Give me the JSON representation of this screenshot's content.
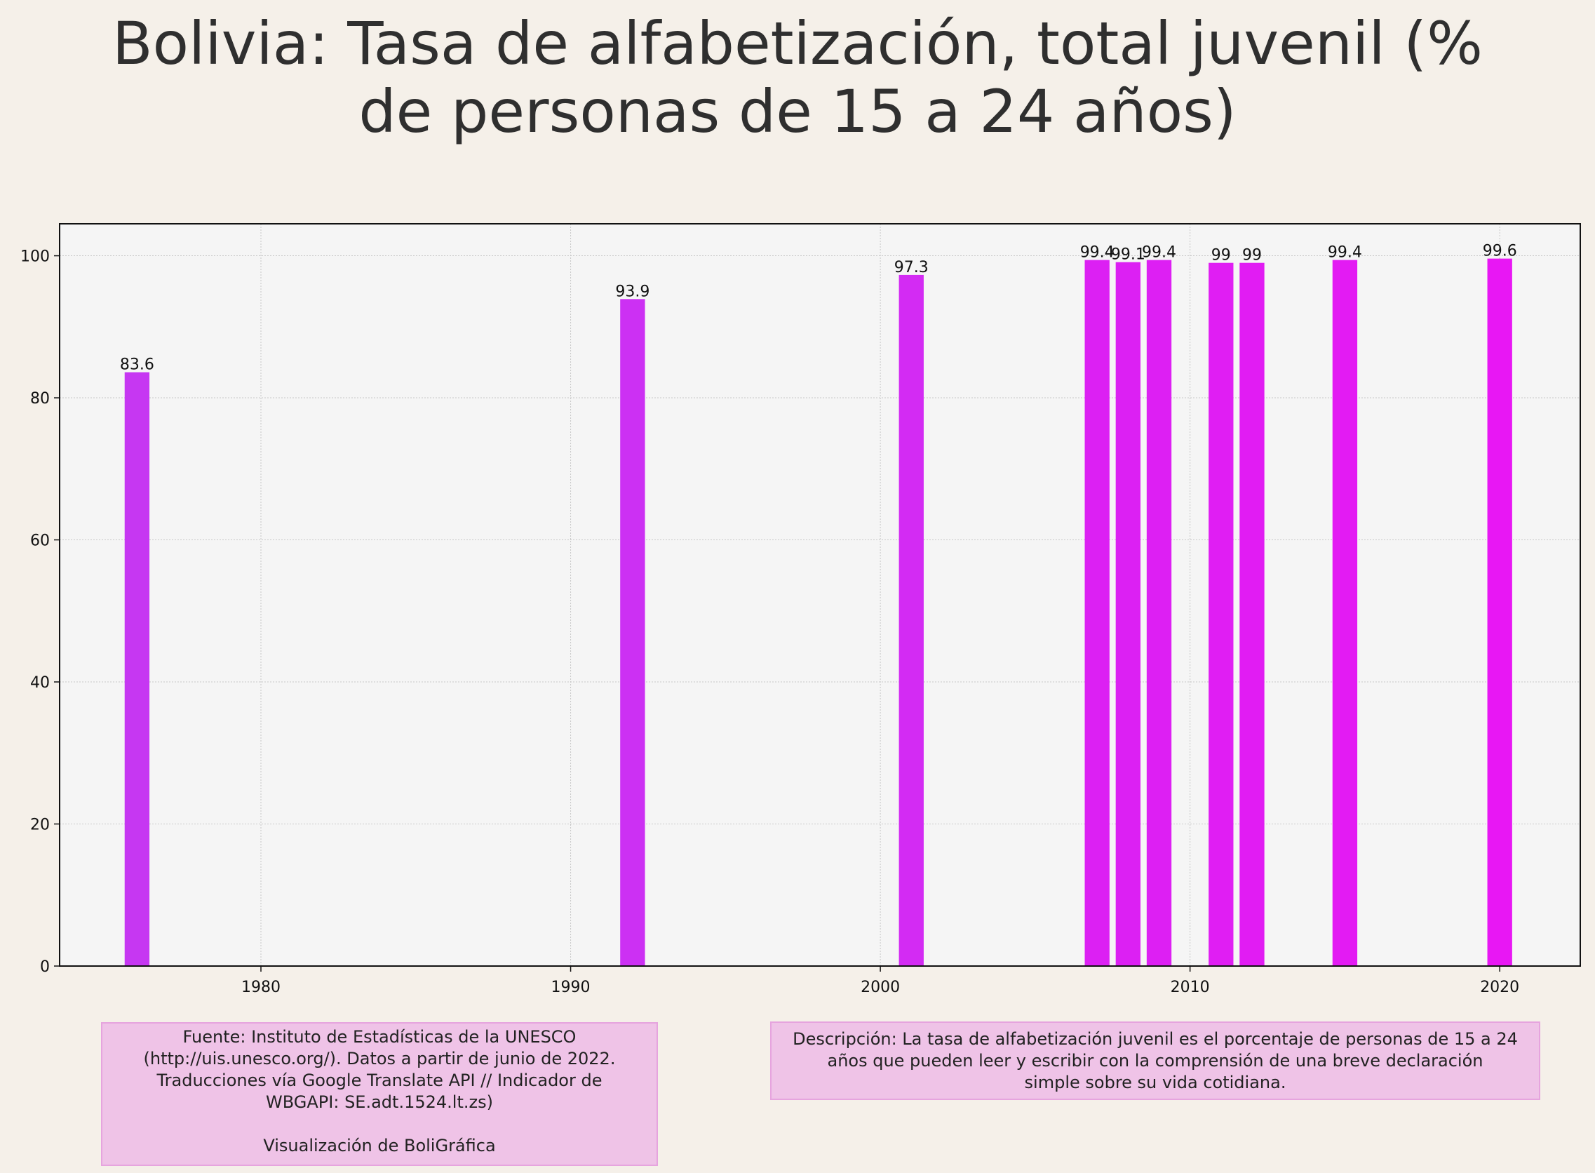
{
  "chart_data": {
    "type": "bar",
    "title": "Bolivia:  Tasa de alfabetización, total juvenil (% de personas de 15 a 24 años)",
    "title_lines": [
      "Bolivia:  Tasa de alfabetización, total juvenil (%",
      "de personas de 15 a 24 años)"
    ],
    "x": [
      1976,
      1992,
      2001,
      2007,
      2008,
      2009,
      2011,
      2012,
      2015,
      2020
    ],
    "values": [
      83.6,
      93.9,
      97.3,
      99.4,
      99.1,
      99.4,
      99,
      99,
      99.4,
      99.6
    ],
    "data_labels": [
      "83.6",
      "93.9",
      "97.3",
      "99.4",
      "99.1",
      "99.4",
      "99",
      "99",
      "99.4",
      "99.6"
    ],
    "bar_colors": [
      "#c637f2",
      "#cc30f3",
      "#d32bf3",
      "#dc20f3",
      "#dc20f3",
      "#dd1ff3",
      "#e01ef3",
      "#e11cf3",
      "#e31bf3",
      "#e817f4"
    ],
    "xlim": [
      1973.5,
      2022.6
    ],
    "ylim": [
      0,
      104.5
    ],
    "xticks": [
      1980,
      1990,
      2000,
      2010,
      2020
    ],
    "yticks": [
      0,
      20,
      40,
      60,
      80,
      100
    ],
    "grid": true,
    "xlabel": "",
    "ylabel": "",
    "colors": {
      "background": "#f5f0e9",
      "plot_background": "#f5f5f5",
      "grid": "#c8c8c8"
    }
  },
  "notes": {
    "source_lines": [
      "Fuente: Instituto de Estadísticas de la UNESCO",
      "(http://uis.unesco.org/). Datos a partir de junio de 2022.",
      "Traducciones vía Google Translate API // Indicador de",
      "WBGAPI: SE.adt.1524.lt.zs)"
    ],
    "credit": "Visualización de BoliGráfica",
    "description_lines": [
      "Descripción: La tasa de alfabetización juvenil es el porcentaje de personas de 15 a 24",
      "años que pueden leer y escribir con la comprensión de una breve declaración",
      "simple sobre su vida cotidiana."
    ]
  }
}
